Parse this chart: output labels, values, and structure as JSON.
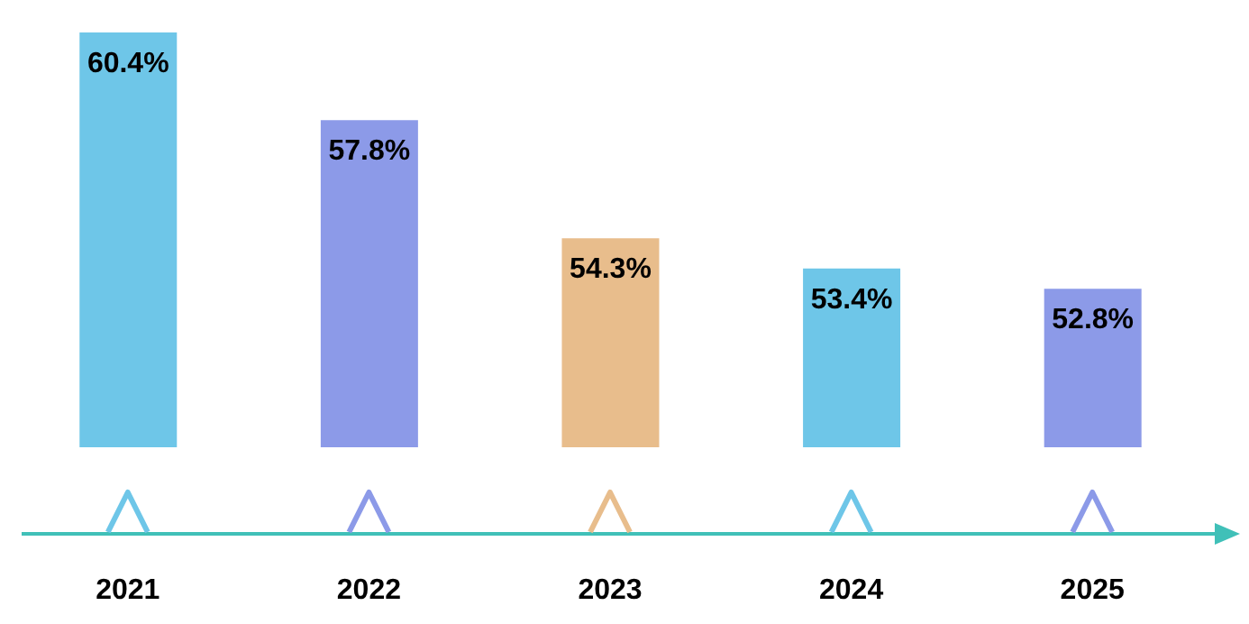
{
  "chart_data": {
    "type": "bar",
    "categories": [
      "2021",
      "2022",
      "2023",
      "2024",
      "2025"
    ],
    "values": [
      60.4,
      57.8,
      54.3,
      53.4,
      52.8
    ],
    "value_labels": [
      "60.4%",
      "57.8%",
      "54.3%",
      "53.4%",
      "52.8%"
    ],
    "colors": [
      "#6ec6e8",
      "#8c9ae8",
      "#e8bd8c",
      "#6ec6e8",
      "#8c9ae8"
    ],
    "ylim": [
      48.1,
      60.4
    ],
    "tick_labels": "x"
  }
}
